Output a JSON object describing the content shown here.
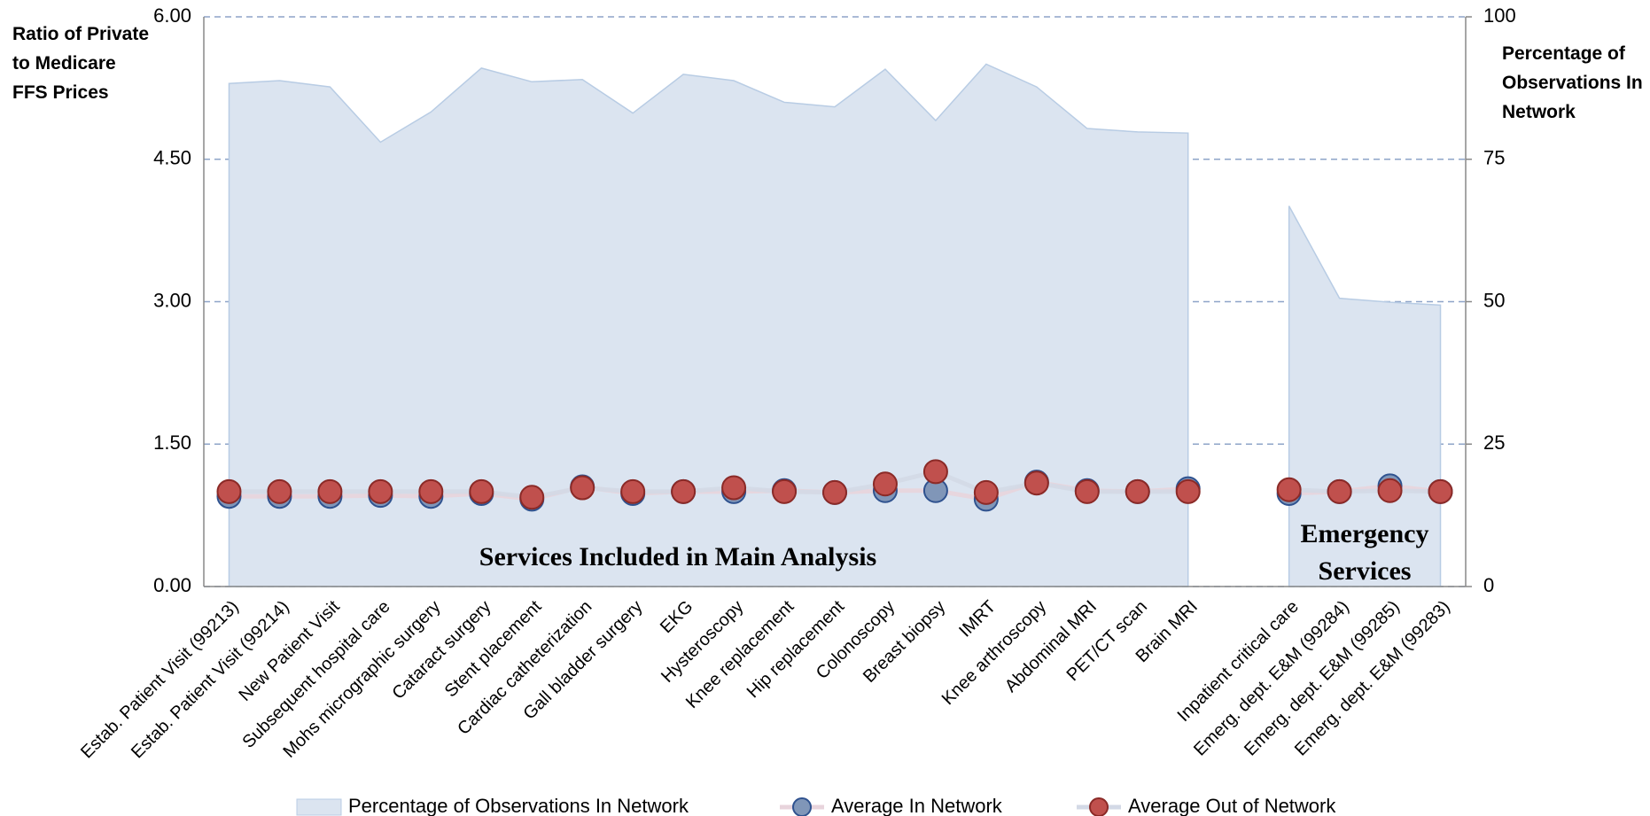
{
  "chart_data": {
    "type": "area_line",
    "y_label": "Ratio of Private to Medicare FFS Prices",
    "y2_label": "Percentage of Observations In Network",
    "annotations": [
      "Services Included in Main Analysis",
      "Emergency Services"
    ],
    "categories": [
      "Estab. Patient Visit (99213)",
      "Estab. Patient Visit (99214)",
      "New Patient Visit",
      "Subsequent hospital care",
      "Mohs micrographic surgery",
      "Cataract surgery",
      "Stent placement",
      "Cardiac catheterization",
      "Gall bladder surgery",
      "EKG",
      "Hysteroscopy",
      "Knee replacement",
      "Hip replacement",
      "Colonoscopy",
      "Breast biopsy",
      "IMRT",
      "Knee arthroscopy",
      "Abdominal MRI",
      "PET/CT scan",
      "Brain MRI",
      null,
      "Inpatient critical care",
      "Emerg. dept. E&M (99284)",
      "Emerg. dept. E&M (99285)",
      "Emerg. dept. E&M (99283)"
    ],
    "series": [
      {
        "name": "Percentage of Observations In Network",
        "kind": "area",
        "axis": "y2",
        "color": "#dbe4f0",
        "values": [
          88.3,
          88.8,
          87.7,
          78.0,
          83.3,
          91.0,
          88.6,
          89.0,
          83.1,
          89.9,
          88.8,
          85.0,
          84.2,
          90.8,
          81.8,
          91.7,
          87.7,
          80.4,
          79.8,
          79.6,
          null,
          66.8,
          50.6,
          49.9,
          49.4
        ]
      },
      {
        "name": "Average In Network",
        "kind": "marker",
        "color": "#8096b8",
        "values": [
          0.95,
          0.95,
          0.95,
          0.96,
          0.95,
          0.98,
          0.92,
          1.05,
          0.98,
          1.0,
          1.0,
          1.01,
          0.99,
          1.01,
          1.01,
          0.92,
          1.1,
          1.01,
          1.0,
          1.03,
          null,
          0.98,
          1.0,
          1.06,
          1.0
        ]
      },
      {
        "name": "Average Out of Network",
        "kind": "marker",
        "color": "#c0504d",
        "values": [
          1.0,
          1.0,
          1.0,
          1.0,
          1.0,
          1.0,
          0.94,
          1.04,
          1.0,
          1.0,
          1.04,
          1.0,
          0.99,
          1.08,
          1.21,
          0.99,
          1.09,
          1.0,
          1.0,
          1.0,
          null,
          1.02,
          1.0,
          1.01,
          1.0
        ]
      }
    ],
    "ylim": [
      0,
      6
    ],
    "yticks": [
      {
        "value": 0,
        "label": "0.00"
      },
      {
        "value": 1.5,
        "label": "1.50"
      },
      {
        "value": 3,
        "label": "3.00"
      },
      {
        "value": 4.5,
        "label": "4.50"
      },
      {
        "value": 6,
        "label": "6.00"
      }
    ],
    "y2lim": [
      0,
      100
    ],
    "y2ticks": [
      0,
      25,
      50,
      75,
      100
    ],
    "grid": true,
    "legend": "bottom"
  }
}
